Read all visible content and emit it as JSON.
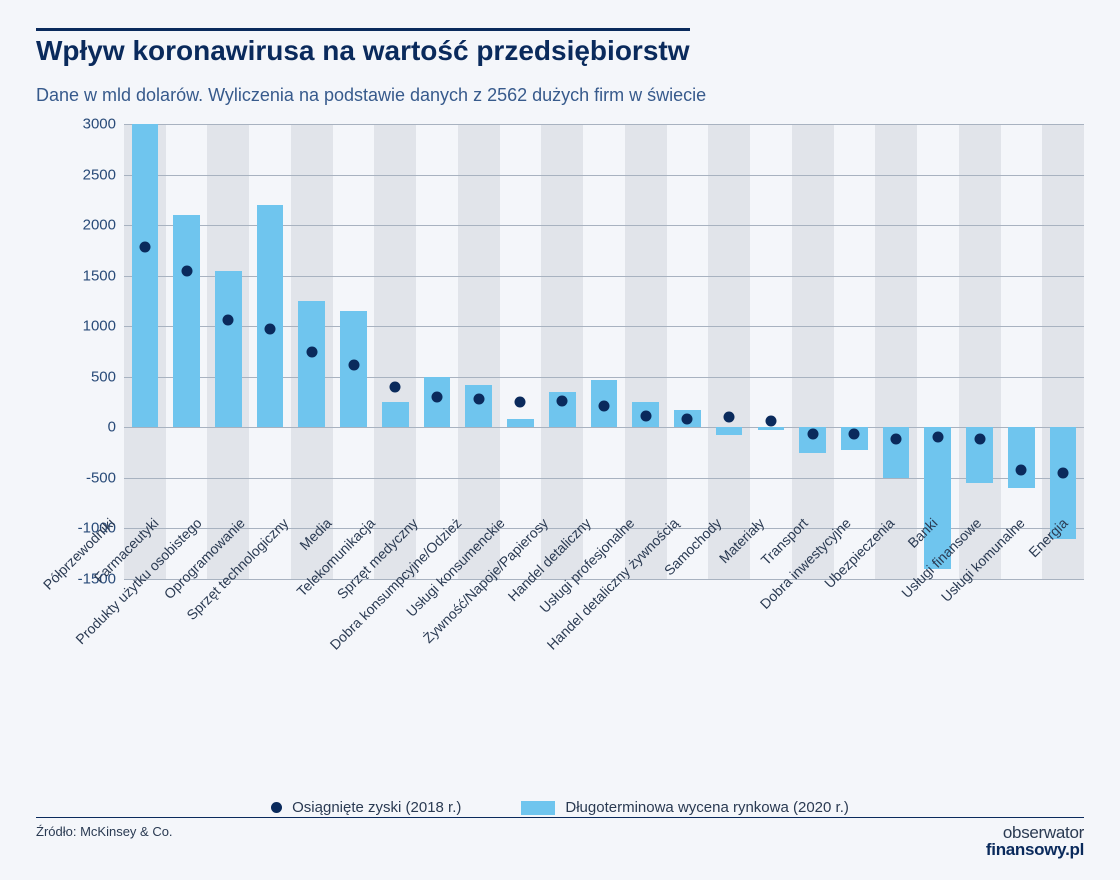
{
  "title": "Wpływ koronawirusa na wartość przedsiębiorstw",
  "subtitle": "Dane w mld dolarów. Wyliczenia na podstawie danych z 2562 dużych firm w świecie",
  "source": "Źródło: McKinsey & Co.",
  "brand_top": "obserwator",
  "brand_bottom": "finansowy.pl",
  "chart": {
    "type": "bar+scatter",
    "ylim": [
      -1500,
      3000
    ],
    "ytick_step": 500,
    "bar_color": "#6fc5ee",
    "dot_color": "#0a2a5c",
    "grid_color": "#a8b2c0",
    "stripe_color": "#e1e4ea",
    "background_color": "#f4f6fa",
    "label_color": "#2a3a52",
    "axis_label_fontsize": 14,
    "categories": [
      "Półprzewodniki",
      "Farmaceutyki",
      "Produkty użytku osobistego",
      "Oprogramowanie",
      "Sprzęt technologiczny",
      "Media",
      "Telekomunikacja",
      "Sprzęt medyczny",
      "Dobra konsumpcyjne/Odzież",
      "Usługi konsumenckie",
      "Żywność/Napoje/Papierosy",
      "Handel detaliczny",
      "Usługi profesjonalne",
      "Handel detaliczny żywnością",
      "Samochody",
      "Materiały",
      "Transport",
      "Dobra inwestycyjne",
      "Ubezpieczenia",
      "Banki",
      "Usługi finansowe",
      "Usługi komunalne",
      "Energia"
    ],
    "bar_values": [
      3000,
      2100,
      1550,
      2200,
      1250,
      1150,
      250,
      500,
      420,
      80,
      350,
      470,
      250,
      170,
      -80,
      -30,
      -250,
      -220,
      -500,
      -1400,
      -550,
      -600,
      -1100
    ],
    "dot_values": [
      1780,
      1550,
      1060,
      970,
      750,
      620,
      400,
      300,
      280,
      250,
      260,
      210,
      110,
      80,
      100,
      60,
      -70,
      -70,
      -120,
      -100,
      -120,
      -420,
      -450
    ],
    "legend": {
      "dot_label": "Osiągnięte zyski (2018 r.)",
      "bar_label": "Długoterminowa wycena rynkowa (2020 r.)"
    }
  }
}
